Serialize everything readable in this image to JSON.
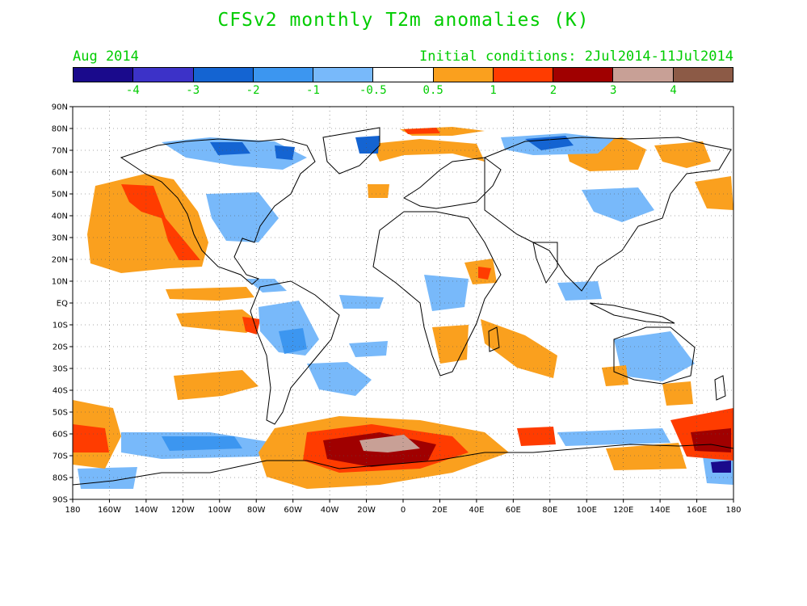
{
  "header": {
    "title": "CFSv2 monthly T2m anomalies (K)",
    "month": "Aug 2014",
    "initial_conditions": "Initial conditions: 2Jul2014-11Jul2014"
  },
  "colorbar": {
    "colors": [
      "#1a0a8c",
      "#3c32c8",
      "#1464d2",
      "#3c96f0",
      "#78b9fa",
      "#ffffff",
      "#faa01e",
      "#ff3c00",
      "#a00000",
      "#c8a096",
      "#8c5a46"
    ],
    "labels": [
      "-4",
      "-3",
      "-2",
      "-1",
      "-0.5",
      "0.5",
      "1",
      "2",
      "3",
      "4"
    ]
  },
  "map": {
    "lat_labels": [
      "90N",
      "80N",
      "70N",
      "60N",
      "50N",
      "40N",
      "30N",
      "20N",
      "10N",
      "EQ",
      "10S",
      "20S",
      "30S",
      "40S",
      "50S",
      "60S",
      "70S",
      "80S",
      "90S"
    ],
    "lon_labels": [
      "180",
      "160W",
      "140W",
      "120W",
      "100W",
      "80W",
      "60W",
      "40W",
      "20W",
      "0",
      "20E",
      "40E",
      "60E",
      "80E",
      "100E",
      "120E",
      "140E",
      "160E",
      "180"
    ]
  }
}
